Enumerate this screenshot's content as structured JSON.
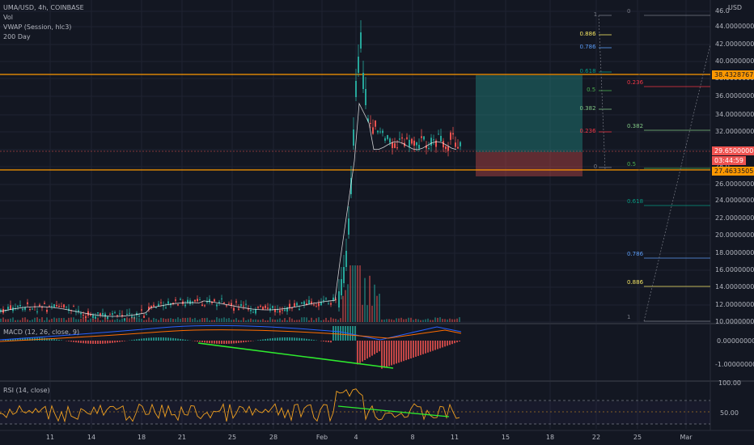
{
  "legend": {
    "symbol": "UMA/USD, 4h, COINBASE",
    "vol": "Vol",
    "vwap": "VWAP (Session, hlc3)",
    "ma": "200 Day",
    "macd": "MACD (12, 26, close, 9)",
    "rsi": "RSI (14, close)"
  },
  "currency": "USD",
  "price_axis": [
    "46.0",
    "44.00000000",
    "42.00000000",
    "40.00000000",
    "38.00000000",
    "36.00000000",
    "34.00000000",
    "32.00000000",
    "30.00000000",
    "28.0",
    "26.00000000",
    "24.00000000",
    "22.00000000",
    "20.00000000",
    "18.00000000",
    "16.00000000",
    "14.00000000",
    "12.00000000",
    "10.00000000"
  ],
  "price_tags": {
    "resistance": "38.43287673",
    "current": "29.65000000",
    "countdown": "03:44:59",
    "support": "27.46335050"
  },
  "macd_axis": [
    "0.00000000",
    "-1.00000000"
  ],
  "rsi_axis": [
    "100.00",
    "50.00"
  ],
  "dates": [
    "11",
    "14",
    "18",
    "21",
    "25",
    "28",
    "Feb",
    "4",
    "8",
    "11",
    "15",
    "18",
    "22",
    "25",
    "Mar"
  ],
  "fib_left": [
    {
      "label": "1",
      "color": "#787b86"
    },
    {
      "label": "0.886",
      "color": "#f5e663"
    },
    {
      "label": "0.786",
      "color": "#5b9cf6"
    },
    {
      "label": "0.618",
      "color": "#089981"
    },
    {
      "label": "0.5",
      "color": "#4caf50"
    },
    {
      "label": "0.382",
      "color": "#81c784"
    },
    {
      "label": "0.236",
      "color": "#f23645"
    },
    {
      "label": "0",
      "color": "#787b86"
    }
  ],
  "fib_right": [
    {
      "label": "0",
      "color": "#787b86"
    },
    {
      "label": "0.236",
      "color": "#f23645"
    },
    {
      "label": "0.382",
      "color": "#81c784"
    },
    {
      "label": "0.5",
      "color": "#4caf50"
    },
    {
      "label": "0.618",
      "color": "#089981"
    },
    {
      "label": "0.786",
      "color": "#5b9cf6"
    },
    {
      "label": "0.886",
      "color": "#f5e663"
    },
    {
      "label": "1",
      "color": "#787b86"
    }
  ],
  "colors": {
    "bull": "#26a69a",
    "bear": "#ef5350",
    "resistance": "#ff9800",
    "divergence": "#2eea2e",
    "rsi": "#f0a020",
    "macd": "#2962ff",
    "signal": "#ff6d00"
  }
}
